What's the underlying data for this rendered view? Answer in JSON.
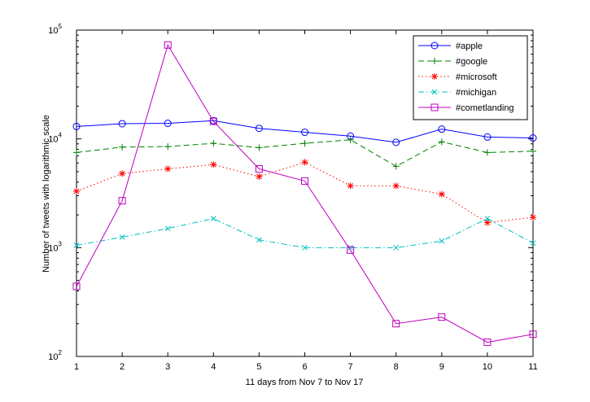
{
  "chart_data": {
    "type": "line",
    "title": "",
    "xlabel": "11 days from Nov 7 to Nov 17",
    "ylabel": "Number of tweets with logarithmic scale",
    "x": [
      1,
      2,
      3,
      4,
      5,
      6,
      7,
      8,
      9,
      10,
      11
    ],
    "xlim": [
      1,
      11
    ],
    "ylim": [
      100,
      100000
    ],
    "yscale": "log",
    "x_ticks": [
      "1",
      "2",
      "3",
      "4",
      "5",
      "6",
      "7",
      "8",
      "9",
      "10",
      "11"
    ],
    "y_ticks": [
      {
        "base": "10",
        "exp": "2",
        "value": 100
      },
      {
        "base": "10",
        "exp": "3",
        "value": 1000
      },
      {
        "base": "10",
        "exp": "4",
        "value": 10000
      },
      {
        "base": "10",
        "exp": "5",
        "value": 100000
      }
    ],
    "grid": false,
    "legend_position": "top-right",
    "series": [
      {
        "name": "#apple",
        "color": "#0000ff",
        "dash": "solid",
        "marker": "circle",
        "values": [
          13000,
          13800,
          13900,
          14700,
          12500,
          11500,
          10600,
          9300,
          12300,
          10400,
          10200
        ]
      },
      {
        "name": "#google",
        "color": "#008000",
        "dash": "dashed",
        "marker": "plus",
        "values": [
          7500,
          8400,
          8500,
          9100,
          8300,
          9100,
          9800,
          5600,
          9400,
          7500,
          7700
        ]
      },
      {
        "name": "#microsoft",
        "color": "#ff0000",
        "dash": "dotted",
        "marker": "asterisk",
        "values": [
          3300,
          4800,
          5300,
          5800,
          4500,
          6100,
          3700,
          3700,
          3100,
          1700,
          1900
        ]
      },
      {
        "name": "#michigan",
        "color": "#00bfbf",
        "dash": "dashdot",
        "marker": "x",
        "values": [
          1050,
          1250,
          1500,
          1850,
          1180,
          1000,
          1000,
          1000,
          1150,
          1850,
          1100
        ]
      },
      {
        "name": "#cometlanding",
        "color": "#bf00bf",
        "dash": "solid",
        "marker": "square",
        "values": [
          440,
          2700,
          73000,
          14500,
          5300,
          4100,
          950,
          200,
          230,
          135,
          160
        ]
      }
    ]
  }
}
